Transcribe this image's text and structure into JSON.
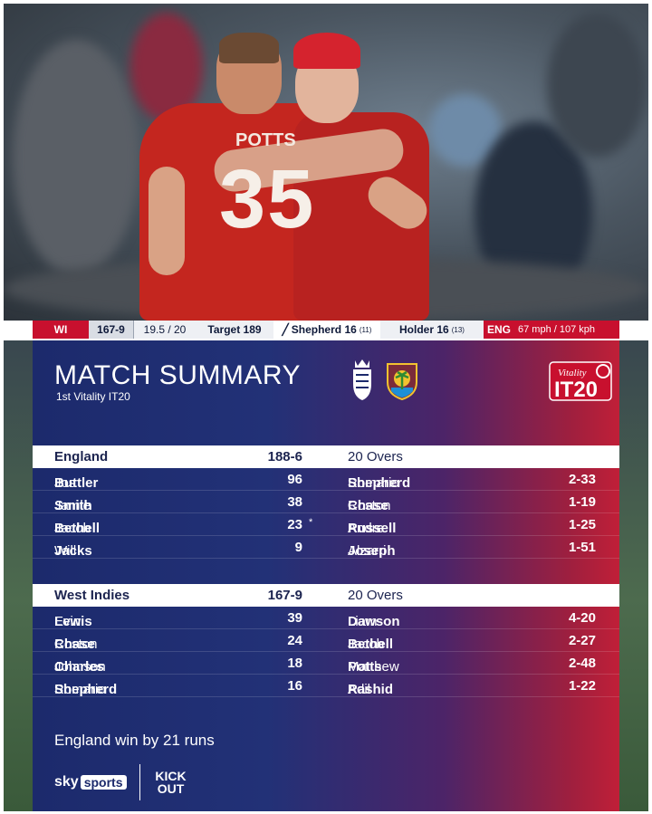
{
  "photo": {
    "jersey_number": "35",
    "jersey_name": "POTTS"
  },
  "scorebar": {
    "batting_team": "WI",
    "score": "167-9",
    "overs": "19.5 / 20",
    "target": "Target 189",
    "batter1_name": "Shepherd",
    "batter1_runs": "16",
    "batter1_balls": "(11)",
    "batter2_name": "Holder",
    "batter2_runs": "16",
    "batter2_balls": "(13)",
    "bowling_team": "ENG",
    "speed": "67 mph / 107 kph"
  },
  "summary": {
    "title": "MATCH SUMMARY",
    "subtitle": "1st Vitality IT20",
    "logo_text": "Vitality IT20",
    "innings": [
      {
        "team": "England",
        "score": "188-6",
        "overs": "20 Overs",
        "batting": [
          {
            "first": "Jos",
            "last": "Buttler",
            "runs": "96",
            "notout": ""
          },
          {
            "first": "Jamie",
            "last": "Smith",
            "runs": "38",
            "notout": ""
          },
          {
            "first": "Jacob",
            "last": "Bethell",
            "runs": "23",
            "notout": "*"
          },
          {
            "first": "Will",
            "last": "Jacks",
            "runs": "9",
            "notout": ""
          }
        ],
        "bowling": [
          {
            "first": "Romario",
            "last": "Shepherd",
            "figures": "2-33"
          },
          {
            "first": "Roston",
            "last": "Chase",
            "figures": "1-19"
          },
          {
            "first": "Andre",
            "last": "Russell",
            "figures": "1-25"
          },
          {
            "first": "Alzarri",
            "last": "Joseph",
            "figures": "1-51"
          }
        ]
      },
      {
        "team": "West Indies",
        "score": "167-9",
        "overs": "20 Overs",
        "batting": [
          {
            "first": "Evin",
            "last": "Lewis",
            "runs": "39",
            "notout": ""
          },
          {
            "first": "Roston",
            "last": "Chase",
            "runs": "24",
            "notout": ""
          },
          {
            "first": "Johnson",
            "last": "Charles",
            "runs": "18",
            "notout": ""
          },
          {
            "first": "Romario",
            "last": "Shepherd",
            "runs": "16",
            "notout": ""
          }
        ],
        "bowling": [
          {
            "first": "Liam",
            "last": "Dawson",
            "figures": "4-20"
          },
          {
            "first": "Jacob",
            "last": "Bethell",
            "figures": "2-27"
          },
          {
            "first": "Matthew",
            "last": "Potts",
            "figures": "2-48"
          },
          {
            "first": "Adil",
            "last": "Rashid",
            "figures": "1-22"
          }
        ]
      }
    ],
    "result": "England win by 21 runs",
    "broadcaster_sky": "sky",
    "broadcaster_sports": "sports",
    "kick_text_1": "KICK",
    "kick_text_2": "OUT"
  }
}
